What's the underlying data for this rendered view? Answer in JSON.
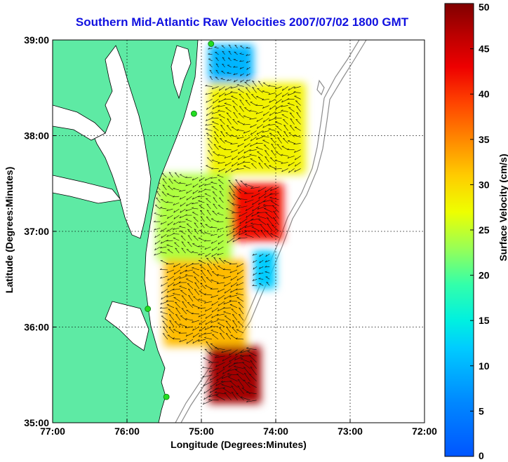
{
  "chart_data": {
    "type": "map",
    "title": "Southern Mid-Atlantic Raw Velocities 2007/07/02 1800 GMT",
    "xlabel": "Longitude (Degrees:Minutes)",
    "ylabel": "Latitude (Degrees:Minutes)",
    "x_ticks": [
      "77:00",
      "76:00",
      "75:00",
      "74:00",
      "73:00",
      "72:00"
    ],
    "y_ticks": [
      "39:00",
      "38:00",
      "37:00",
      "36:00",
      "35:00"
    ],
    "xlim": [
      -77,
      -72
    ],
    "ylim": [
      35,
      39
    ],
    "grid": true,
    "colorbar": {
      "label": "Surface Velocity (cm/s)",
      "ticks": [
        "0",
        "5",
        "10",
        "15",
        "20",
        "25",
        "30",
        "35",
        "40",
        "45",
        "50"
      ],
      "range": [
        0,
        50
      ],
      "colormap": "jet"
    },
    "colors": {
      "land": "#5eeaa4",
      "water": "#ffffff",
      "coastline": "#000000",
      "bathymetry": "#8c8c8c",
      "title": "#1010e0",
      "station": "#22dd22"
    },
    "stations": [
      {
        "lon": -74.87,
        "lat": 38.96
      },
      {
        "lon": -75.1,
        "lat": 38.23
      },
      {
        "lon": -75.72,
        "lat": 36.19
      },
      {
        "lon": -75.47,
        "lat": 35.27
      }
    ],
    "velocity_regions": [
      {
        "name": "delaware-shelf-north",
        "lon_range": [
          -74.9,
          -74.3
        ],
        "lat_range": [
          38.55,
          38.95
        ],
        "speed": 10
      },
      {
        "name": "maryland-shelf",
        "lon_range": [
          -74.9,
          -73.6
        ],
        "lat_range": [
          37.6,
          38.55
        ],
        "speed": 28
      },
      {
        "name": "virginia-offshore-jet",
        "lon_range": [
          -74.6,
          -73.9
        ],
        "lat_range": [
          36.9,
          37.5
        ],
        "speed": 42
      },
      {
        "name": "virginia-nearshore",
        "lon_range": [
          -75.6,
          -74.6
        ],
        "lat_range": [
          36.7,
          37.6
        ],
        "speed": 24
      },
      {
        "name": "blue-eddy",
        "lon_range": [
          -74.3,
          -74.0
        ],
        "lat_range": [
          36.4,
          36.8
        ],
        "speed": 12
      },
      {
        "name": "outer-banks",
        "lon_range": [
          -75.5,
          -74.4
        ],
        "lat_range": [
          35.8,
          36.7
        ],
        "speed": 32
      },
      {
        "name": "hatteras-gulf-stream",
        "lon_range": [
          -74.9,
          -74.2
        ],
        "lat_range": [
          35.2,
          35.8
        ],
        "speed": 48
      }
    ]
  }
}
